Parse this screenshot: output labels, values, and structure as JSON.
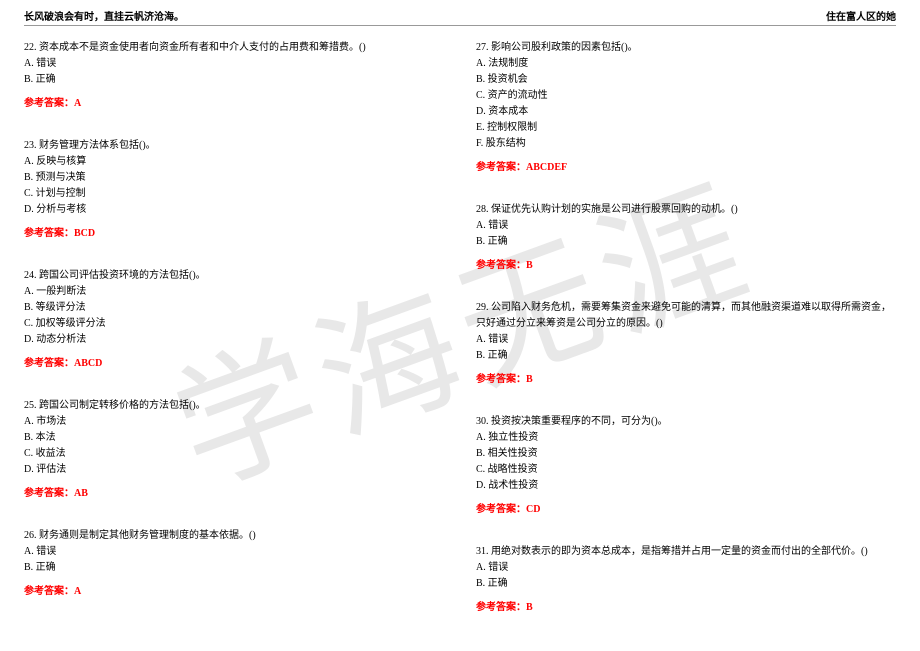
{
  "watermark_text": "学海无涯",
  "header_left": "长风破浪会有时，直挂云帆济沧海。",
  "header_right": "住在富人区的她",
  "answer_label": "参考答案：",
  "colors": {
    "text": "#000000",
    "answer": "#ff0000",
    "watermark": "#e8e8e8",
    "rule": "#999999",
    "background": "#ffffff"
  },
  "left": [
    {
      "stem": "22. 资本成本不是资金使用者向资金所有者和中介人支付的占用费和筹措费。()",
      "opts": [
        "A. 错误",
        "B. 正确"
      ],
      "ans": "A"
    },
    {
      "stem": "23. 财务管理方法体系包括()。",
      "opts": [
        "A. 反映与核算",
        "B. 预测与决策",
        "C. 计划与控制",
        "D. 分析与考核"
      ],
      "ans": "BCD"
    },
    {
      "stem": "24. 跨国公司评估投资环境的方法包括()。",
      "opts": [
        "A. 一般判断法",
        "B. 等级评分法",
        "C. 加权等级评分法",
        "D. 动态分析法"
      ],
      "ans": "ABCD"
    },
    {
      "stem": "25. 跨国公司制定转移价格的方法包括()。",
      "opts": [
        "A. 市场法",
        "B. 本法",
        "C. 收益法",
        "D. 评估法"
      ],
      "ans": "AB"
    },
    {
      "stem": "26. 财务通则是制定其他财务管理制度的基本依据。()",
      "opts": [
        "A. 错误",
        "B. 正确"
      ],
      "ans": "A"
    }
  ],
  "right": [
    {
      "stem": "27. 影响公司股利政策的因素包括()。",
      "opts": [
        "A. 法规制度",
        "B. 投资机会",
        "C. 资产的流动性",
        "D. 资本成本",
        "E. 控制权限制",
        "F. 股东结构"
      ],
      "ans": "ABCDEF"
    },
    {
      "stem": "28. 保证优先认购计划的实施是公司进行股票回购的动机。()",
      "opts": [
        "A. 错误",
        "B. 正确"
      ],
      "ans": "B"
    },
    {
      "stem": "29. 公司陷入财务危机，需要筹集资金来避免可能的清算，而其他融资渠道难以取得所需资金，只好通过分立来筹资是公司分立的原因。()",
      "opts": [
        "A. 错误",
        "B. 正确"
      ],
      "ans": "B"
    },
    {
      "stem": "30. 投资按决策重要程序的不同，可分为()。",
      "opts": [
        "A. 独立性投资",
        "B. 相关性投资",
        "C. 战略性投资",
        "D. 战术性投资"
      ],
      "ans": "CD"
    },
    {
      "stem": "31. 用绝对数表示的即为资本总成本，是指筹措并占用一定量的资金而付出的全部代价。()",
      "opts": [
        "A. 错误",
        "B. 正确"
      ],
      "ans": "B"
    }
  ]
}
